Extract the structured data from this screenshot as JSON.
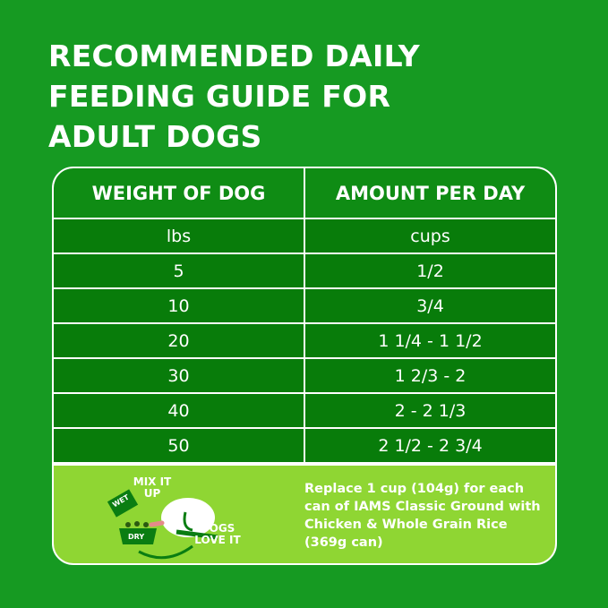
{
  "title": [
    "RECOMMENDED DAILY",
    "FEEDING GUIDE FOR",
    "ADULT DOGS"
  ],
  "table": {
    "headers": [
      "WEIGHT OF DOG",
      "AMOUNT PER DAY"
    ],
    "units": [
      "lbs",
      "cups"
    ],
    "rows": [
      {
        "weight": "5",
        "amount": "1/2"
      },
      {
        "weight": "10",
        "amount": "3/4"
      },
      {
        "weight": "20",
        "amount": "1 1/4 - 1 1/2"
      },
      {
        "weight": "30",
        "amount": "1 2/3 - 2"
      },
      {
        "weight": "40",
        "amount": "2 - 2 1/3"
      },
      {
        "weight": "50",
        "amount": "2 1/2 - 2 3/4"
      }
    ]
  },
  "panel": {
    "mix_label": "MIX IT UP",
    "wet_label": "WET",
    "dry_label": "DRY",
    "dogs_label": "DOGS LOVE IT",
    "note": "Replace 1 cup (104g) for each can of IAMS Classic Ground with Chicken & Whole Grain Rice (369g can)"
  },
  "colors": {
    "background": "#169a22",
    "cell": "#087c0a",
    "panel": "#8fd633"
  }
}
